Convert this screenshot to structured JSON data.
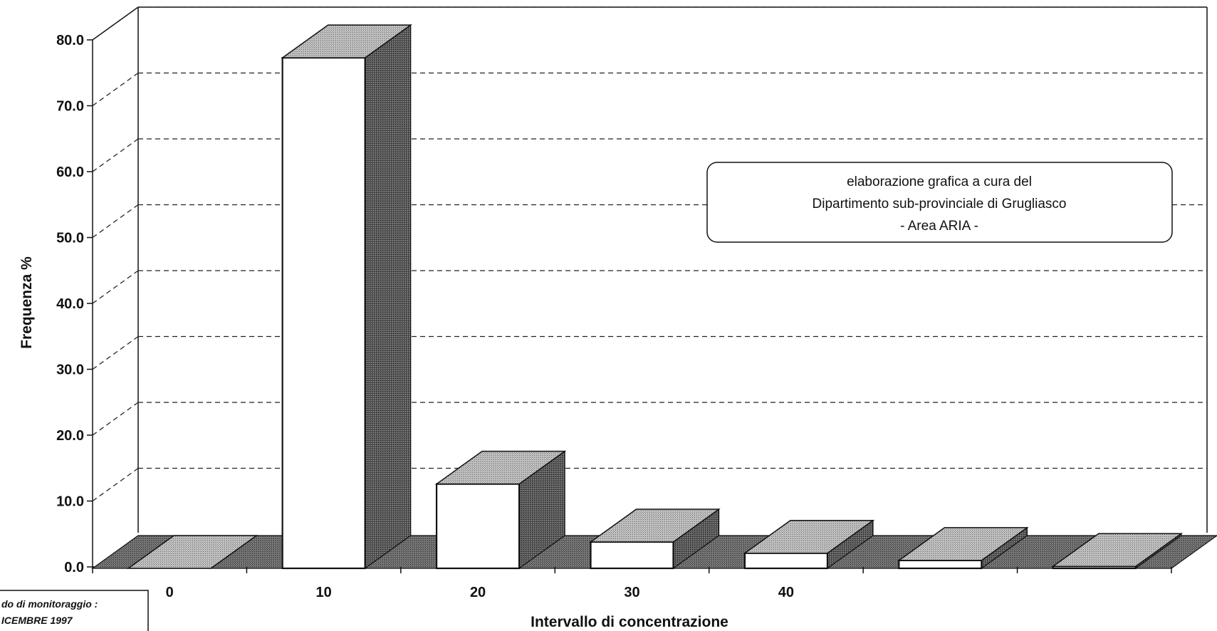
{
  "chart_data": {
    "type": "bar",
    "categories": [
      "0",
      "10",
      "20",
      "30",
      "40",
      "",
      ""
    ],
    "values": [
      0.0,
      77.5,
      12.8,
      4.0,
      2.3,
      1.2,
      0.3
    ],
    "title": "",
    "xlabel": "Intervallo di concentrazione",
    "ylabel": "Frequenza %",
    "ylim": [
      0,
      80
    ],
    "yticks": [
      "0.0",
      "10.0",
      "20.0",
      "30.0",
      "40.0",
      "50.0",
      "60.0",
      "70.0",
      "80.0"
    ],
    "grid": true,
    "legend": "none",
    "style": "3d-bar"
  },
  "annotation": {
    "lines": [
      "elaborazione grafica a cura del",
      "Dipartimento sub-provinciale di Grugliasco",
      "- Area ARIA -"
    ]
  },
  "period_note": {
    "lines": [
      "do di monitoraggio :",
      "ICEMBRE 1997"
    ]
  },
  "colors": {
    "bar_front": "#ffffff",
    "bar_top": "#b4b4b4",
    "bar_side": "#555555",
    "floor": "#6e6e6e",
    "ink": "#111111"
  }
}
